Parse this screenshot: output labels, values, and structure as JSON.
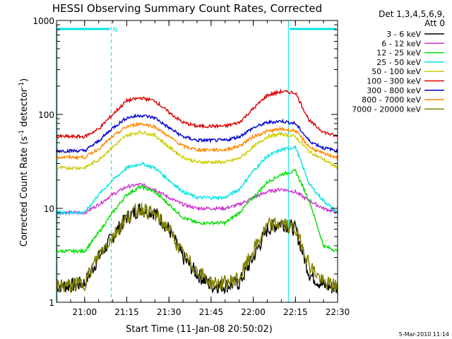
{
  "chart_data": {
    "type": "line",
    "title": "HESSI Observing Summary Count Rates, Corrected",
    "xlabel": "Start Time (11-Jan-08 20:50:02)",
    "ylabel_main": "Corrected Count Rate (s",
    "ylabel_sup1": "-1",
    "ylabel_mid": " detector",
    "ylabel_sup2": "-1",
    "ylabel_end": ")",
    "yscale": "log",
    "ylim": [
      1,
      1000
    ],
    "xlim_minutes": [
      0,
      100
    ],
    "x_tick_labels": [
      "21:00",
      "21:15",
      "21:30",
      "21:45",
      "22:00",
      "22:15",
      "22:30"
    ],
    "y_tick_labels": [
      "1",
      "10",
      "100",
      "1000"
    ],
    "legend_header": [
      "Det 1,3,4,5,6,9,",
      "Att 0"
    ],
    "legend_position": "right",
    "footer": "5-Mar-2010 11:14",
    "night_marker": "N",
    "series": [
      {
        "name": "3 - 6 keV",
        "color": "#000000",
        "values": [
          1.5,
          1.5,
          1.6,
          3,
          5,
          8,
          10,
          9,
          6,
          3,
          2,
          1.5,
          1.5,
          1.6,
          3,
          6,
          7,
          6,
          2,
          1.5,
          1.4
        ]
      },
      {
        "name": "6 - 12 keV",
        "color": "#cc33cc",
        "values": [
          9,
          9,
          9,
          11,
          14,
          17,
          18,
          16,
          13,
          11,
          10,
          10,
          10,
          11,
          13,
          15,
          16,
          15,
          12,
          10,
          9
        ]
      },
      {
        "name": "12 - 25 keV",
        "color": "#00dd00",
        "values": [
          3.5,
          3.5,
          3.5,
          5.5,
          9,
          14,
          17,
          15,
          11,
          8,
          7,
          7,
          7,
          9,
          13,
          19,
          23,
          25,
          12,
          4,
          3.5
        ]
      },
      {
        "name": "25 - 50 keV",
        "color": "#00e5e5",
        "values": [
          9,
          9,
          9,
          14,
          20,
          27,
          30,
          27,
          20,
          15,
          13,
          13,
          13,
          16,
          25,
          36,
          42,
          45,
          18,
          12,
          9
        ]
      },
      {
        "name": "50 - 100 keV",
        "color": "#cccc00",
        "values": [
          27,
          27,
          27,
          33,
          45,
          60,
          65,
          60,
          45,
          35,
          31,
          31,
          31,
          34,
          45,
          58,
          62,
          58,
          40,
          33,
          27
        ]
      },
      {
        "name": "100 - 300 keV",
        "color": "#dd0000",
        "values": [
          58,
          58,
          58,
          70,
          100,
          140,
          150,
          140,
          105,
          82,
          75,
          75,
          75,
          82,
          115,
          160,
          175,
          170,
          85,
          65,
          58
        ]
      },
      {
        "name": "300 - 800 keV",
        "color": "#0000cc",
        "values": [
          41,
          41,
          41,
          52,
          72,
          92,
          98,
          92,
          72,
          58,
          53,
          53,
          53,
          58,
          72,
          82,
          85,
          80,
          52,
          44,
          41
        ]
      },
      {
        "name": "800 - 7000 keV",
        "color": "#ff8800",
        "values": [
          35,
          35,
          35,
          43,
          58,
          74,
          80,
          74,
          58,
          46,
          42,
          42,
          42,
          46,
          58,
          66,
          70,
          67,
          45,
          38,
          35
        ]
      },
      {
        "name": "7000 - 20000 keV",
        "color": "#808000",
        "values": [
          1.5,
          1.5,
          1.6,
          3.2,
          5,
          8,
          10,
          8.5,
          6,
          3.2,
          2.2,
          1.6,
          1.6,
          1.8,
          3.5,
          6.5,
          7,
          6,
          2.5,
          1.6,
          1.5
        ]
      }
    ],
    "x_minutes": [
      0,
      5,
      10,
      15,
      20,
      25,
      30,
      35,
      40,
      45,
      50,
      55,
      60,
      65,
      70,
      75,
      80,
      85,
      90,
      95,
      100
    ],
    "night_intervals_minutes": [
      [
        0,
        19.5
      ],
      [
        82.5,
        100
      ]
    ],
    "saa_markers_minutes": [
      19.5,
      82,
      100
    ]
  }
}
